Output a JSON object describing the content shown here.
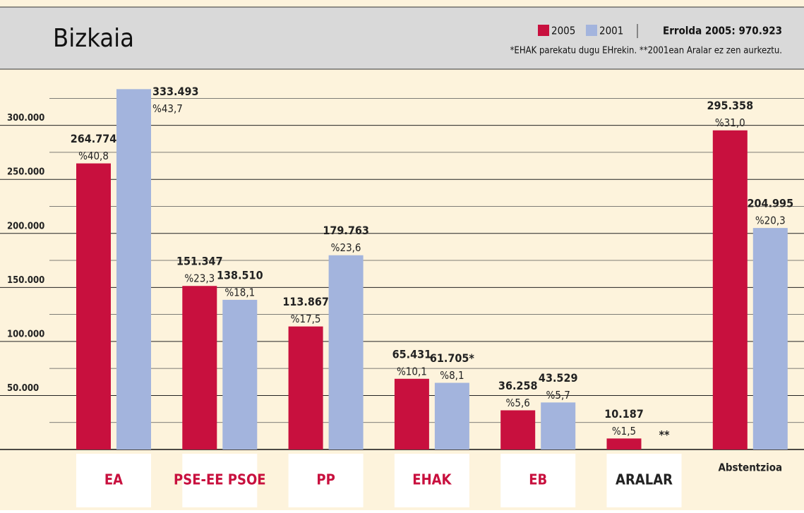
{
  "chart_data": {
    "type": "bar",
    "title": "Bizkaia",
    "legend_extra": "Errolda 2005: 970.923",
    "subtitle": "*EHAK parekatu dugu EHrekin.  **2001ean Aralar ez zen aurkeztu.",
    "categories": [
      "EA",
      "PSE-EE PSOE",
      "PP",
      "EHAK",
      "EB",
      "ARALAR",
      "Abstentzioa"
    ],
    "series": [
      {
        "name": "2005",
        "color": "#c8103e",
        "values": [
          264774,
          151347,
          113867,
          65431,
          36258,
          10187,
          295358
        ],
        "value_labels": [
          "264.774",
          "151.347",
          "113.867",
          "65.431",
          "36.258",
          "10.187",
          "295.358"
        ],
        "percent_labels": [
          "%40,8",
          "%23,3",
          "%17,5",
          "%10,1",
          "%5,6",
          "%1,5",
          "%31,0"
        ]
      },
      {
        "name": "2001",
        "color": "#a3b4dd",
        "values": [
          333493,
          138510,
          179763,
          61705,
          43529,
          null,
          204995
        ],
        "value_labels": [
          "333.493",
          "138.510",
          "179.763",
          "61.705*",
          "43.529",
          "**",
          "204.995"
        ],
        "percent_labels": [
          "%43,7",
          "%18,1",
          "%23,6",
          "%8,1",
          "%5,7",
          null,
          "%20,3"
        ]
      }
    ],
    "ylim": [
      0,
      352000
    ],
    "yticks": [
      {
        "value": 50000,
        "label": "50.000"
      },
      {
        "value": 100000,
        "label": "100.000"
      },
      {
        "value": 150000,
        "label": "150.000"
      },
      {
        "value": 200000,
        "label": "200.000"
      },
      {
        "value": 250000,
        "label": "250.000"
      },
      {
        "value": 300000,
        "label": "300.000"
      }
    ],
    "minor_yticks": [
      25000,
      75000,
      125000,
      175000,
      225000,
      275000,
      325000
    ],
    "grid": true
  }
}
